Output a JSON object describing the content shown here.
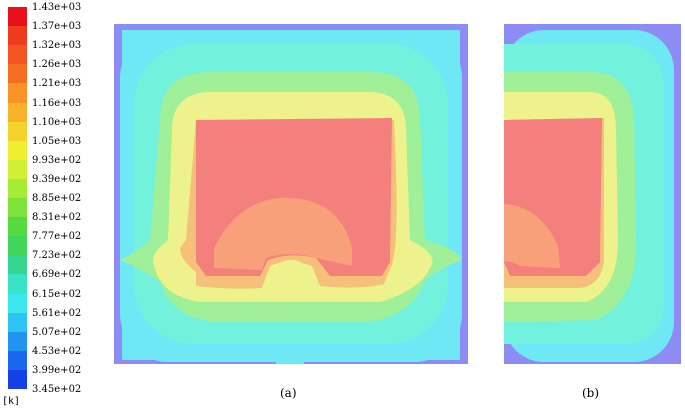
{
  "legend": {
    "unit": "[k]",
    "ticks": [
      "1.43e+03",
      "1.37e+03",
      "1.32e+03",
      "1.26e+03",
      "1.21e+03",
      "1.16e+03",
      "1.10e+03",
      "1.05e+03",
      "9.93e+02",
      "9.39e+02",
      "8.85e+02",
      "8.31e+02",
      "7.77e+02",
      "7.23e+02",
      "6.69e+02",
      "6.15e+02",
      "5.61e+02",
      "5.07e+02",
      "4.53e+02",
      "3.99e+02",
      "3.45e+02"
    ],
    "colors": [
      "#e8101a",
      "#f03a1e",
      "#f4541f",
      "#f66e22",
      "#f79327",
      "#f7b22a",
      "#f5d22c",
      "#eef02f",
      "#d1f034",
      "#a6ec36",
      "#7fe23b",
      "#55da3f",
      "#3ed65b",
      "#37d690",
      "#37e4c6",
      "#3ae8ee",
      "#2cc4f2",
      "#2094f0",
      "#1a66ee",
      "#1540e8",
      "#1020e2"
    ]
  },
  "plots": {
    "a": {
      "caption": "(a)"
    },
    "b": {
      "caption": "(b)"
    }
  },
  "palette": {
    "outer": "#8c8cf4",
    "cyan_light": "#6ee8f4",
    "cyan": "#70f2e4",
    "green": "#9ef090",
    "yellow": "#ecf28c",
    "orange": "#f6b870",
    "salmon": "#f7a078",
    "core": "#f48080"
  }
}
